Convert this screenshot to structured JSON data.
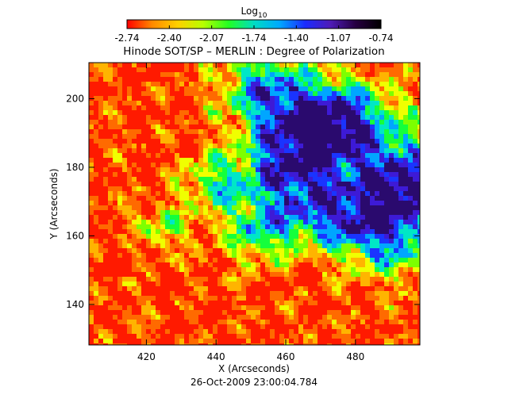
{
  "colorbar": {
    "label_base": "Log",
    "label_subscript": "10",
    "ticks": [
      "-2.74",
      "-2.40",
      "-2.07",
      "-1.74",
      "-1.40",
      "-1.07",
      "-0.74"
    ],
    "min": -2.74,
    "max": -0.74,
    "colors": [
      "#ff0000",
      "#ff8a00",
      "#ffd000",
      "#b7ff00",
      "#22ff22",
      "#00dcc3",
      "#00a9ff",
      "#1a2cff",
      "#4e1bb8",
      "#260040",
      "#000000"
    ]
  },
  "figure": {
    "title": "Hinode SOT/SP – MERLIN : Degree of Polarization",
    "xlabel": "X (Arcseconds)",
    "ylabel": "Y (Arcseconds)",
    "timestamp": "26-Oct-2009 23:00:04.784",
    "xlim": [
      403.5,
      498.5
    ],
    "ylim": [
      128.2,
      210.5
    ],
    "x_ticks": [
      420,
      440,
      460,
      480
    ],
    "y_ticks": [
      140,
      160,
      180,
      200
    ]
  }
}
